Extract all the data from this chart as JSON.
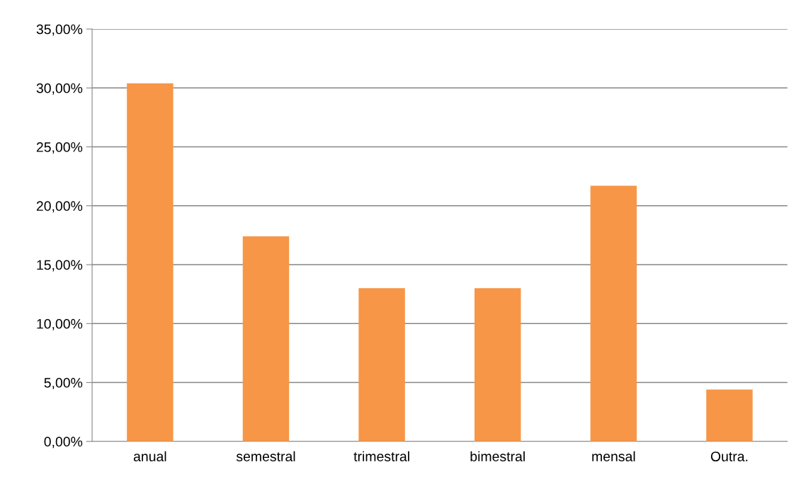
{
  "chart_data": {
    "type": "bar",
    "categories": [
      "anual",
      "semestral",
      "trimestral",
      "bimestral",
      "mensal",
      "Outra."
    ],
    "values": [
      30.4,
      17.4,
      13.0,
      13.0,
      21.7,
      4.4
    ],
    "color": "#f79646",
    "ylim": [
      0,
      35
    ],
    "yticks": [
      {
        "value": 0,
        "label": "0,00%"
      },
      {
        "value": 5,
        "label": "5,00%"
      },
      {
        "value": 10,
        "label": "10,00%"
      },
      {
        "value": 15,
        "label": "15,00%"
      },
      {
        "value": 20,
        "label": "20,00%"
      },
      {
        "value": 25,
        "label": "25,00%"
      },
      {
        "value": 30,
        "label": "30,00%"
      },
      {
        "value": 35,
        "label": "35,00%"
      }
    ],
    "grid": "y",
    "legend": false
  }
}
